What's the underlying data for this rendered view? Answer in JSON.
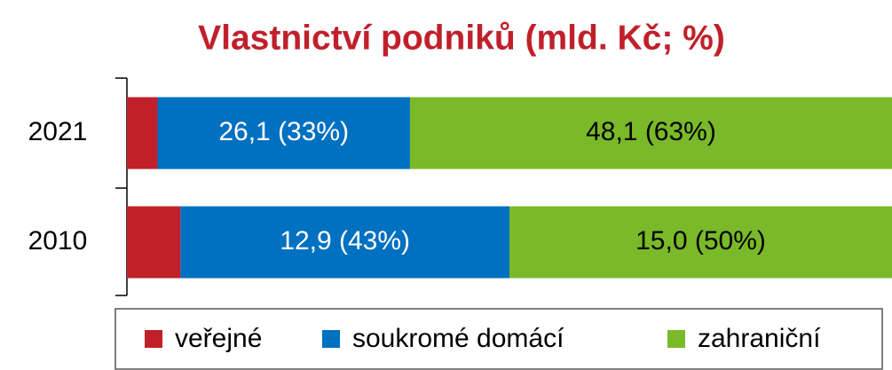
{
  "chart_data": {
    "type": "bar",
    "orientation": "horizontal",
    "stacked": true,
    "title": "Vlastnictví podniků (mld. Kč; %)",
    "categories": [
      "2021",
      "2010"
    ],
    "xlim": [
      0,
      100
    ],
    "series": [
      {
        "name": "veřejné",
        "color": "#c0202a",
        "values": [
          4,
          7
        ]
      },
      {
        "name": "soukromé domácí",
        "color": "#0070c0",
        "values": [
          33,
          43
        ],
        "value_labels": [
          "26,1 (33%)",
          "12,9 (43%)"
        ],
        "label_color": "#ffffff"
      },
      {
        "name": "zahraniční",
        "color": "#7ab929",
        "values": [
          63,
          50
        ],
        "value_labels": [
          "48,1 (63%)",
          "15,0 (50%)"
        ],
        "label_color": "#000000"
      }
    ],
    "legend": "bottom"
  }
}
